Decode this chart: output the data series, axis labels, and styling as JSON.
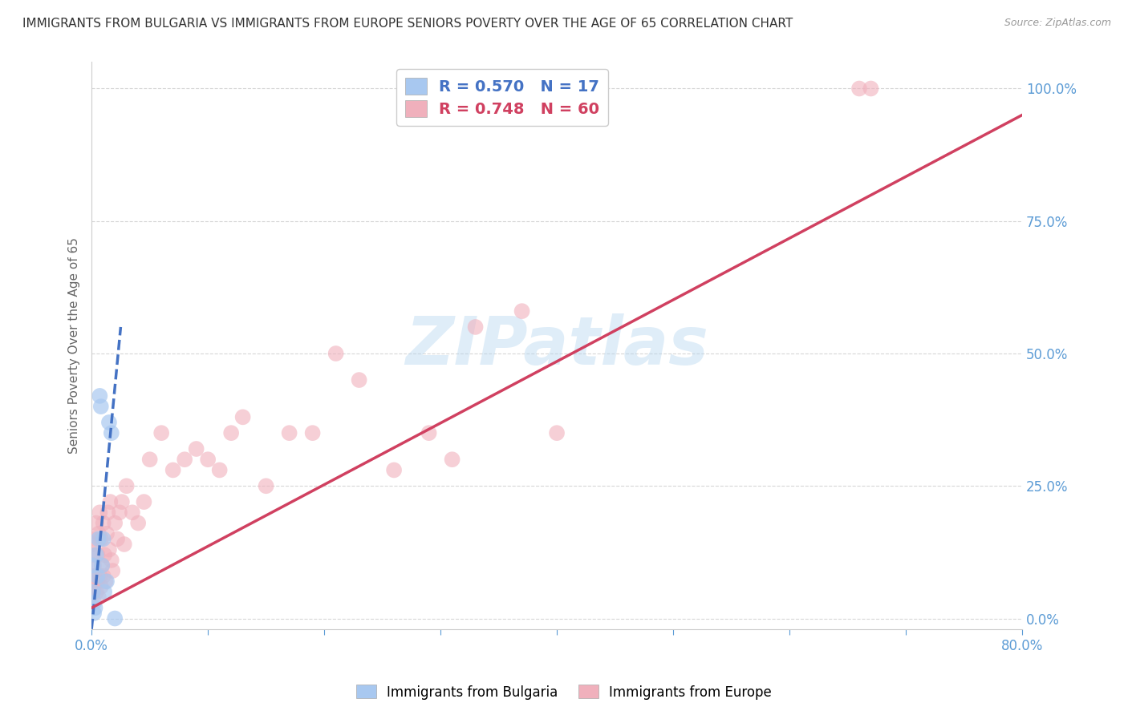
{
  "title": "IMMIGRANTS FROM BULGARIA VS IMMIGRANTS FROM EUROPE SENIORS POVERTY OVER THE AGE OF 65 CORRELATION CHART",
  "source": "Source: ZipAtlas.com",
  "ylabel": "Seniors Poverty Over the Age of 65",
  "xlim": [
    0,
    0.8
  ],
  "ylim": [
    -0.02,
    1.05
  ],
  "xtick_positions": [
    0.0,
    0.1,
    0.2,
    0.3,
    0.4,
    0.5,
    0.6,
    0.7,
    0.8
  ],
  "xticklabels": [
    "0.0%",
    "",
    "",
    "",
    "",
    "",
    "",
    "",
    "80.0%"
  ],
  "ytick_positions": [
    0.0,
    0.25,
    0.5,
    0.75,
    1.0
  ],
  "yticklabels": [
    "0.0%",
    "25.0%",
    "50.0%",
    "75.0%",
    "100.0%"
  ],
  "bulgaria_R": 0.57,
  "bulgaria_N": 17,
  "europe_R": 0.748,
  "europe_N": 60,
  "bulgaria_color": "#a8c8f0",
  "europe_color": "#f0b0bc",
  "bulgaria_line_color": "#4472c4",
  "europe_line_color": "#d04060",
  "legend_label_bulgaria": "Immigrants from Bulgaria",
  "legend_label_europe": "Immigrants from Europe",
  "watermark": "ZIPatlas",
  "background_color": "#ffffff",
  "grid_color": "#cccccc",
  "bulgaria_x": [
    0.001,
    0.001,
    0.002,
    0.002,
    0.003,
    0.004,
    0.005,
    0.006,
    0.007,
    0.008,
    0.009,
    0.01,
    0.011,
    0.013,
    0.015,
    0.017,
    0.02
  ],
  "bulgaria_y": [
    0.05,
    0.1,
    0.01,
    0.03,
    0.02,
    0.12,
    0.08,
    0.15,
    0.42,
    0.4,
    0.1,
    0.15,
    0.05,
    0.07,
    0.37,
    0.35,
    0.0
  ],
  "europe_x": [
    0.001,
    0.001,
    0.001,
    0.002,
    0.002,
    0.002,
    0.003,
    0.003,
    0.004,
    0.004,
    0.005,
    0.005,
    0.006,
    0.006,
    0.007,
    0.007,
    0.008,
    0.008,
    0.009,
    0.01,
    0.01,
    0.011,
    0.012,
    0.013,
    0.014,
    0.015,
    0.016,
    0.017,
    0.018,
    0.02,
    0.022,
    0.024,
    0.026,
    0.028,
    0.03,
    0.035,
    0.04,
    0.045,
    0.05,
    0.06,
    0.07,
    0.08,
    0.09,
    0.1,
    0.11,
    0.12,
    0.13,
    0.15,
    0.17,
    0.19,
    0.21,
    0.23,
    0.26,
    0.29,
    0.31,
    0.33,
    0.37,
    0.4,
    0.66,
    0.67
  ],
  "europe_y": [
    0.05,
    0.08,
    0.12,
    0.06,
    0.1,
    0.14,
    0.08,
    0.15,
    0.05,
    0.18,
    0.12,
    0.07,
    0.04,
    0.16,
    0.08,
    0.2,
    0.06,
    0.15,
    0.1,
    0.18,
    0.08,
    0.12,
    0.07,
    0.16,
    0.2,
    0.13,
    0.22,
    0.11,
    0.09,
    0.18,
    0.15,
    0.2,
    0.22,
    0.14,
    0.25,
    0.2,
    0.18,
    0.22,
    0.3,
    0.35,
    0.28,
    0.3,
    0.32,
    0.3,
    0.28,
    0.35,
    0.38,
    0.25,
    0.35,
    0.35,
    0.5,
    0.45,
    0.28,
    0.35,
    0.3,
    0.55,
    0.58,
    0.35,
    1.0,
    1.0
  ],
  "bulgaria_trendline_x": [
    0.0,
    0.025
  ],
  "bulgaria_trendline_y": [
    -0.02,
    0.55
  ],
  "europe_trendline_x": [
    0.0,
    0.8
  ],
  "europe_trendline_y": [
    0.02,
    0.95
  ]
}
